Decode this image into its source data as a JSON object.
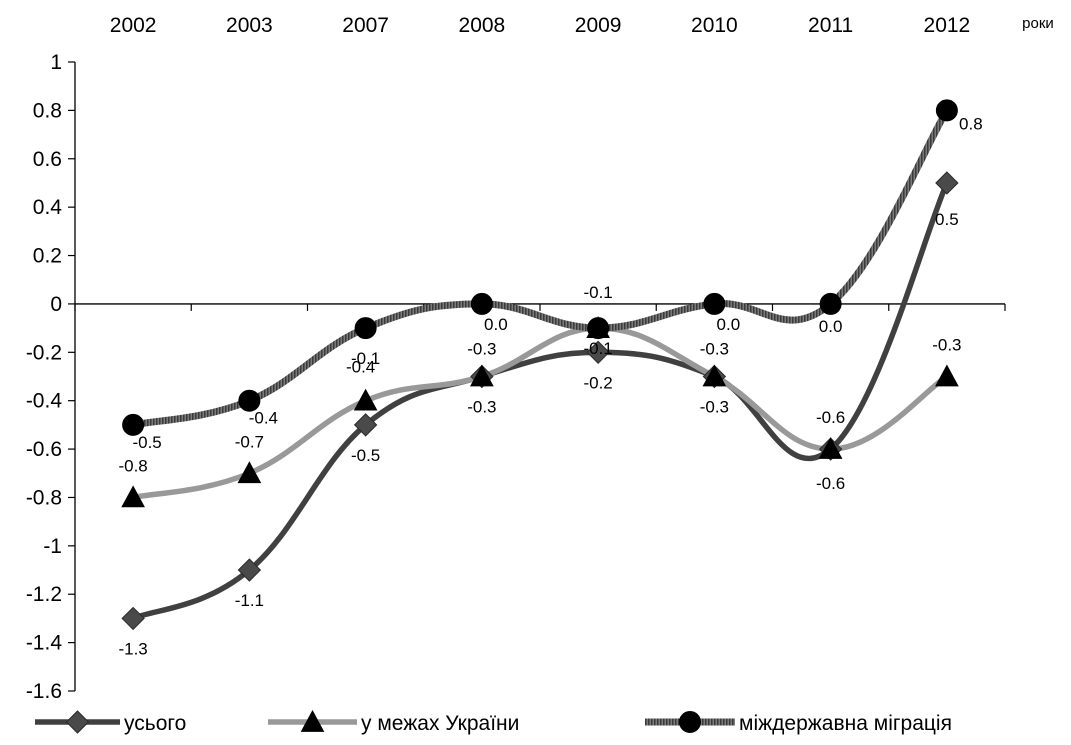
{
  "chart_data": {
    "type": "line",
    "categories": [
      "2002",
      "2003",
      "2007",
      "2008",
      "2009",
      "2010",
      "2011",
      "2012"
    ],
    "x_unit_label": "роки",
    "ylim": [
      -1.6,
      1
    ],
    "ytick_step": 0.2,
    "grid": false,
    "legend_position": "bottom",
    "series": [
      {
        "name": "усього",
        "marker": "diamond",
        "color": "#404040",
        "values": [
          -1.3,
          -1.1,
          -0.5,
          -0.3,
          -0.2,
          -0.3,
          -0.6,
          0.5
        ],
        "labels": [
          "-1.3",
          "-1.1",
          "-0.5",
          "-0.3",
          "-0.2",
          "-0.3",
          "-0.6",
          "0.5"
        ]
      },
      {
        "name": "у межах України",
        "marker": "triangle",
        "color": "#8c8c8c",
        "values": [
          -0.8,
          -0.7,
          -0.4,
          -0.3,
          -0.1,
          -0.3,
          -0.6,
          -0.3
        ],
        "labels": [
          "-0.8",
          "-0.7",
          "-0.4",
          "-0.3",
          "-0.1",
          "-0.3",
          "-0.6",
          "-0.3"
        ]
      },
      {
        "name": "міждержавна міграція",
        "marker": "circle",
        "color": "#6e6e6e",
        "values": [
          -0.5,
          -0.4,
          -0.1,
          0.0,
          -0.1,
          0.0,
          0.0,
          0.8
        ],
        "labels": [
          "-0.5",
          "-0.4",
          "-0.1",
          "0.0",
          "-0.1",
          "0.0",
          "0.0",
          "0.8"
        ]
      }
    ]
  }
}
